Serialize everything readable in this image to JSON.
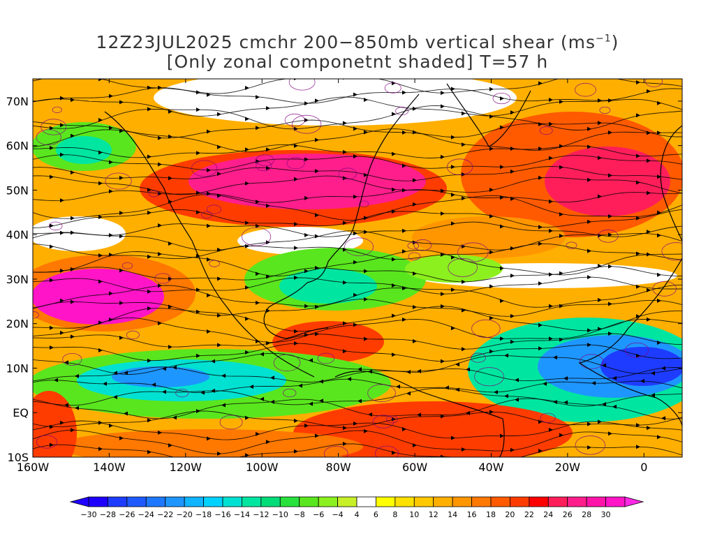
{
  "title": {
    "line1_prefix": "12Z23JUL2025 cmchr 200−850mb vertical shear (ms",
    "line1_sup": "−1",
    "line1_suffix": ")",
    "line2": "[Only zonal componetnt shaded] T=57 h"
  },
  "map": {
    "lon_range": [
      -160,
      10
    ],
    "lat_range": [
      -10,
      75
    ],
    "projection": "cylindrical",
    "lon_ticks": [
      {
        "value": -160,
        "label": "160W"
      },
      {
        "value": -140,
        "label": "140W"
      },
      {
        "value": -120,
        "label": "120W"
      },
      {
        "value": -100,
        "label": "100W"
      },
      {
        "value": -80,
        "label": "80W"
      },
      {
        "value": -60,
        "label": "60W"
      },
      {
        "value": -40,
        "label": "40W"
      },
      {
        "value": -20,
        "label": "20W"
      },
      {
        "value": 0,
        "label": "0"
      }
    ],
    "lat_ticks": [
      {
        "value": 70,
        "label": "70N"
      },
      {
        "value": 60,
        "label": "60N"
      },
      {
        "value": 50,
        "label": "50N"
      },
      {
        "value": 40,
        "label": "40N"
      },
      {
        "value": 30,
        "label": "30N"
      },
      {
        "value": 20,
        "label": "20N"
      },
      {
        "value": 10,
        "label": "10N"
      },
      {
        "value": 0,
        "label": "EQ"
      },
      {
        "value": -10,
        "label": "10S"
      }
    ],
    "shaded_field": "zonal component of 200-850mb vertical shear",
    "overlay": "streamlines"
  },
  "colorbar": {
    "levels": [
      {
        "label": "−30",
        "color": "#1e00ff"
      },
      {
        "label": "−28",
        "color": "#1e3cff"
      },
      {
        "label": "−26",
        "color": "#1e5aff"
      },
      {
        "label": "−24",
        "color": "#1e78ff"
      },
      {
        "label": "−22",
        "color": "#1e96ff"
      },
      {
        "label": "−20",
        "color": "#10b4ff"
      },
      {
        "label": "−18",
        "color": "#00d2ff"
      },
      {
        "label": "−16",
        "color": "#00e1d2"
      },
      {
        "label": "−14",
        "color": "#00e6a0"
      },
      {
        "label": "−12",
        "color": "#00dc78"
      },
      {
        "label": "−10",
        "color": "#28e13c"
      },
      {
        "label": "−8",
        "color": "#5ae61e"
      },
      {
        "label": "−6",
        "color": "#8cf01e"
      },
      {
        "label": "−4",
        "color": "#c8f028"
      },
      {
        "label": "4",
        "color": "#ffffff"
      },
      {
        "label": "6",
        "color": "#ffff00"
      },
      {
        "label": "8",
        "color": "#ffe100"
      },
      {
        "label": "10",
        "color": "#ffc800"
      },
      {
        "label": "12",
        "color": "#ffaf00"
      },
      {
        "label": "14",
        "color": "#ff9600"
      },
      {
        "label": "16",
        "color": "#ff7800"
      },
      {
        "label": "18",
        "color": "#ff5a00"
      },
      {
        "label": "20",
        "color": "#ff3c00"
      },
      {
        "label": "22",
        "color": "#ff0000"
      },
      {
        "label": "24",
        "color": "#ff1e5a"
      },
      {
        "label": "26",
        "color": "#ff1e8c"
      },
      {
        "label": "28",
        "color": "#ff14aa"
      },
      {
        "label": "30",
        "color": "#ff14c8"
      }
    ],
    "overflow_colors": {
      "low": "#2000ff",
      "high": "#ff28e6"
    }
  },
  "colors": {
    "coastline": "#000000",
    "contour": "#800080",
    "streamline": "#000000"
  }
}
